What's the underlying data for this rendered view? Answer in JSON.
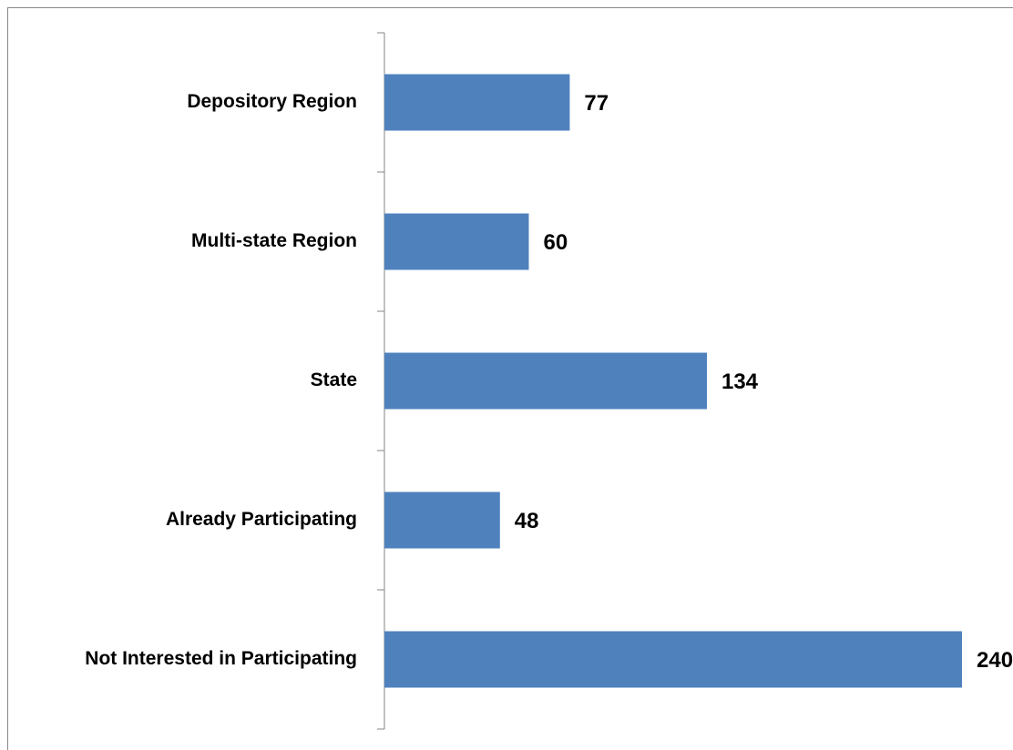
{
  "chart_data": {
    "type": "bar",
    "orientation": "horizontal",
    "categories": [
      "Depository Region",
      "Multi-state Region",
      "State",
      "Already Participating",
      "Not Interested in Participating"
    ],
    "values": [
      77,
      60,
      134,
      48,
      240
    ],
    "color": "#4f81bd"
  }
}
